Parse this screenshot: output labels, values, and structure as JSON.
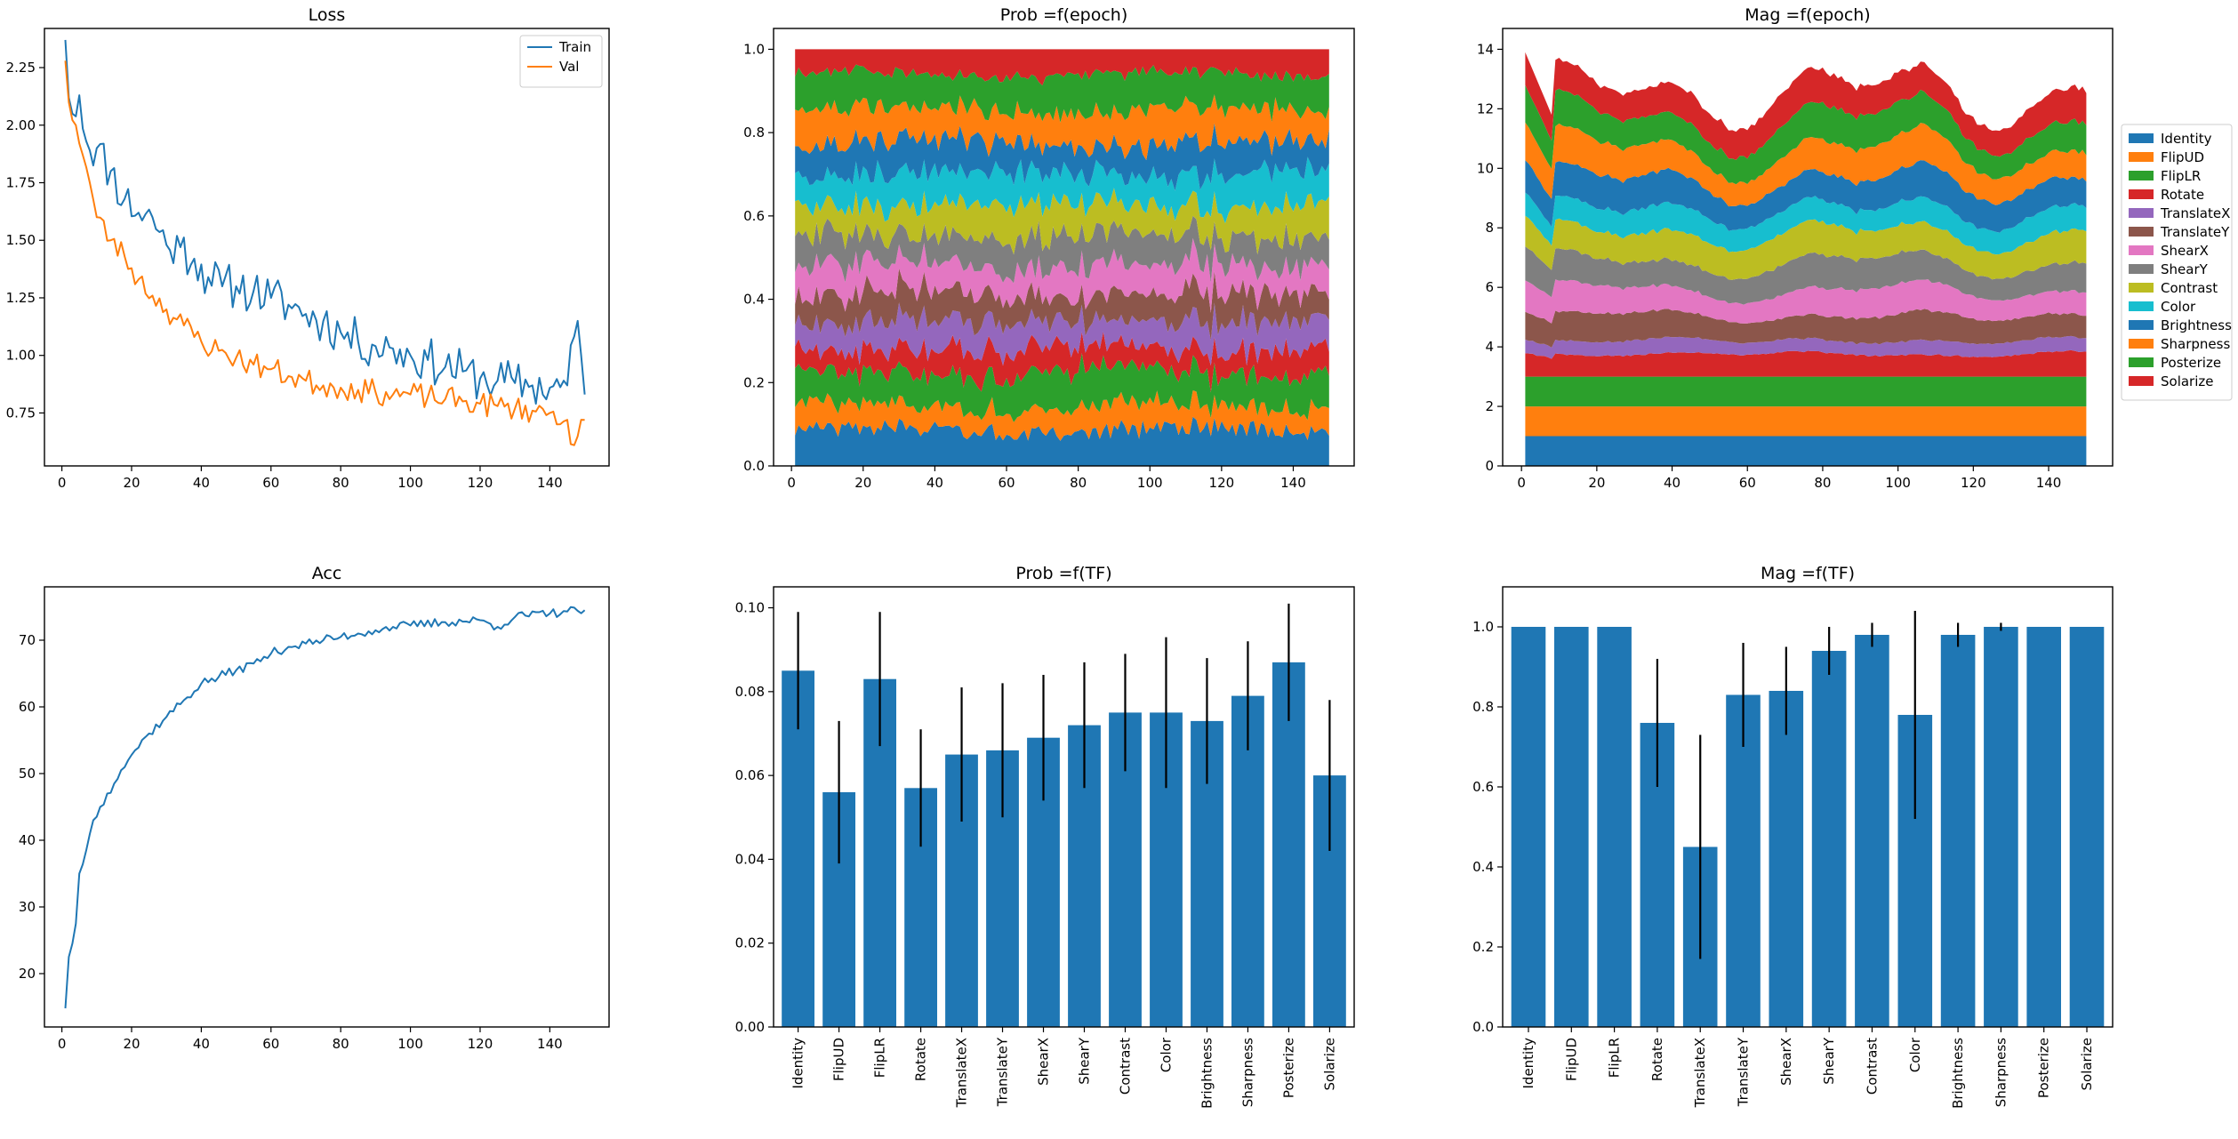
{
  "chart_data": [
    {
      "id": "loss",
      "type": "line",
      "title": "Loss",
      "xlim": [
        -5,
        157
      ],
      "ylim": [
        0.52,
        2.42
      ],
      "xticks": [
        0,
        20,
        40,
        60,
        80,
        100,
        120,
        140
      ],
      "yticks": [
        0.75,
        1.0,
        1.25,
        1.5,
        1.75,
        2.0,
        2.25
      ],
      "ytick_decimals": 2,
      "legend": "top-right",
      "series": [
        {
          "name": "Train",
          "color": "#1f77b4",
          "anchors": [
            [
              1,
              2.37
            ],
            [
              2,
              2.12
            ],
            [
              3,
              2.05
            ],
            [
              5,
              2.13
            ],
            [
              7,
              1.93
            ],
            [
              10,
              1.9
            ],
            [
              14,
              1.8
            ],
            [
              18,
              1.68
            ],
            [
              22,
              1.62
            ],
            [
              26,
              1.6
            ],
            [
              30,
              1.48
            ],
            [
              34,
              1.47
            ],
            [
              38,
              1.42
            ],
            [
              42,
              1.34
            ],
            [
              46,
              1.3
            ],
            [
              50,
              1.3
            ],
            [
              55,
              1.28
            ],
            [
              60,
              1.25
            ],
            [
              65,
              1.22
            ],
            [
              70,
              1.18
            ],
            [
              75,
              1.15
            ],
            [
              80,
              1.1
            ],
            [
              85,
              1.06
            ],
            [
              90,
              1.04
            ],
            [
              95,
              1.03
            ],
            [
              100,
              1.0
            ],
            [
              105,
              0.98
            ],
            [
              110,
              0.95
            ],
            [
              115,
              0.93
            ],
            [
              120,
              0.9
            ],
            [
              125,
              0.89
            ],
            [
              130,
              0.88
            ],
            [
              135,
              0.87
            ],
            [
              140,
              0.86
            ],
            [
              145,
              0.87
            ],
            [
              148,
              1.15
            ],
            [
              150,
              0.83
            ]
          ],
          "noise": 0.1,
          "seed": 11
        },
        {
          "name": "Val",
          "color": "#ff7f0e",
          "anchors": [
            [
              1,
              2.28
            ],
            [
              2,
              2.1
            ],
            [
              4,
              2.0
            ],
            [
              6,
              1.87
            ],
            [
              8,
              1.75
            ],
            [
              10,
              1.6
            ],
            [
              14,
              1.5
            ],
            [
              18,
              1.43
            ],
            [
              22,
              1.33
            ],
            [
              26,
              1.26
            ],
            [
              30,
              1.2
            ],
            [
              35,
              1.13
            ],
            [
              40,
              1.06
            ],
            [
              45,
              1.02
            ],
            [
              50,
              0.99
            ],
            [
              55,
              0.96
            ],
            [
              60,
              0.94
            ],
            [
              65,
              0.91
            ],
            [
              70,
              0.89
            ],
            [
              75,
              0.87
            ],
            [
              80,
              0.86
            ],
            [
              85,
              0.85
            ],
            [
              90,
              0.84
            ],
            [
              95,
              0.83
            ],
            [
              100,
              0.83
            ],
            [
              105,
              0.82
            ],
            [
              110,
              0.81
            ],
            [
              115,
              0.8
            ],
            [
              120,
              0.79
            ],
            [
              125,
              0.78
            ],
            [
              130,
              0.77
            ],
            [
              135,
              0.76
            ],
            [
              140,
              0.75
            ],
            [
              145,
              0.72
            ],
            [
              147,
              0.61
            ],
            [
              150,
              0.72
            ]
          ],
          "noise": 0.055,
          "seed": 23
        }
      ]
    },
    {
      "id": "prob-epoch",
      "type": "area",
      "title": "Prob =f(epoch)",
      "xlim": [
        -5,
        157
      ],
      "ylim": [
        0.0,
        1.05
      ],
      "xticks": [
        0,
        20,
        40,
        60,
        80,
        100,
        120,
        140
      ],
      "yticks": [
        0.0,
        0.2,
        0.4,
        0.6,
        0.8,
        1.0
      ],
      "ytick_decimals": 1,
      "x_range": [
        1,
        150
      ],
      "normalized": true,
      "base_values": [
        0.085,
        0.056,
        0.083,
        0.057,
        0.065,
        0.066,
        0.069,
        0.072,
        0.075,
        0.075,
        0.073,
        0.079,
        0.087,
        0.06
      ],
      "noise": 0.25
    },
    {
      "id": "mag-epoch",
      "type": "area",
      "title": "Mag =f(epoch)",
      "xlim": [
        -5,
        157
      ],
      "ylim": [
        0.0,
        14.7
      ],
      "xticks": [
        0,
        20,
        40,
        60,
        80,
        100,
        120,
        140
      ],
      "yticks": [
        0,
        2,
        4,
        6,
        8,
        10,
        12,
        14
      ],
      "ytick_decimals": 0,
      "x_range": [
        1,
        150
      ],
      "normalized": false,
      "base_values": [
        1.0,
        1.0,
        1.0,
        0.76,
        0.45,
        0.83,
        0.84,
        0.94,
        0.98,
        0.78,
        0.98,
        1.0,
        1.0,
        1.0
      ],
      "fixed_layers": [
        0,
        1,
        2
      ],
      "start_total": 13.9,
      "noise": 0.04,
      "legend": "outside-right",
      "legend_labels": [
        "Identity",
        "FlipUD",
        "FlipLR",
        "Rotate",
        "TranslateX",
        "TranslateY",
        "ShearX",
        "ShearY",
        "Contrast",
        "Color",
        "Brightness",
        "Sharpness",
        "Posterize",
        "Solarize"
      ]
    },
    {
      "id": "acc",
      "type": "line",
      "title": "Acc",
      "xlim": [
        -5,
        157
      ],
      "ylim": [
        12.0,
        78.0
      ],
      "xticks": [
        0,
        20,
        40,
        60,
        80,
        100,
        120,
        140
      ],
      "yticks": [
        20,
        30,
        40,
        50,
        60,
        70
      ],
      "ytick_decimals": 0,
      "series": [
        {
          "name": "",
          "color": "#1f77b4",
          "anchors": [
            [
              1,
              14.8
            ],
            [
              2,
              22.5
            ],
            [
              3,
              24.5
            ],
            [
              4,
              27.5
            ],
            [
              5,
              35
            ],
            [
              7,
              38.5
            ],
            [
              9,
              43
            ],
            [
              11,
              45
            ],
            [
              13,
              47
            ],
            [
              15,
              48.5
            ],
            [
              17,
              50.5
            ],
            [
              19,
              52
            ],
            [
              21,
              53.5
            ],
            [
              25,
              56
            ],
            [
              30,
              58.5
            ],
            [
              35,
              61
            ],
            [
              40,
              63.5
            ],
            [
              45,
              64.5
            ],
            [
              50,
              65.5
            ],
            [
              55,
              66.5
            ],
            [
              60,
              68
            ],
            [
              65,
              69
            ],
            [
              70,
              69.5
            ],
            [
              75,
              70
            ],
            [
              80,
              70.5
            ],
            [
              85,
              71
            ],
            [
              90,
              71.5
            ],
            [
              95,
              72
            ],
            [
              100,
              72.2
            ],
            [
              110,
              72.7
            ],
            [
              120,
              73
            ],
            [
              125,
              72
            ],
            [
              130,
              73.5
            ],
            [
              140,
              74
            ],
            [
              145,
              74.3
            ],
            [
              150,
              74.5
            ]
          ],
          "noise": 0.7,
          "seed": 37
        }
      ]
    },
    {
      "id": "prob-tf",
      "type": "bar",
      "title": "Prob =f(TF)",
      "ylim": [
        0.0,
        0.105
      ],
      "yticks": [
        0.0,
        0.02,
        0.04,
        0.06,
        0.08,
        0.1
      ],
      "ytick_decimals": 2,
      "categories": [
        "Identity",
        "FlipUD",
        "FlipLR",
        "Rotate",
        "TranslateX",
        "TranslateY",
        "ShearX",
        "ShearY",
        "Contrast",
        "Color",
        "Brightness",
        "Sharpness",
        "Posterize",
        "Solarize"
      ],
      "values": [
        0.085,
        0.056,
        0.083,
        0.057,
        0.065,
        0.066,
        0.069,
        0.072,
        0.075,
        0.075,
        0.073,
        0.079,
        0.087,
        0.06
      ],
      "errors": [
        0.014,
        0.017,
        0.016,
        0.014,
        0.016,
        0.016,
        0.015,
        0.015,
        0.014,
        0.018,
        0.015,
        0.013,
        0.014,
        0.018
      ],
      "color": "#1f77b4"
    },
    {
      "id": "mag-tf",
      "type": "bar",
      "title": "Mag =f(TF)",
      "ylim": [
        0.0,
        1.1
      ],
      "yticks": [
        0.0,
        0.2,
        0.4,
        0.6,
        0.8,
        1.0
      ],
      "ytick_decimals": 1,
      "categories": [
        "Identity",
        "FlipUD",
        "FlipLR",
        "Rotate",
        "TranslateX",
        "TranslateY",
        "ShearX",
        "ShearY",
        "Contrast",
        "Color",
        "Brightness",
        "Sharpness",
        "Posterize",
        "Solarize"
      ],
      "values": [
        1.0,
        1.0,
        1.0,
        0.76,
        0.45,
        0.83,
        0.84,
        0.94,
        0.98,
        0.78,
        0.98,
        1.0,
        1.0,
        1.0
      ],
      "errors": [
        0.0,
        0.0,
        0.0,
        0.16,
        0.28,
        0.13,
        0.11,
        0.06,
        0.03,
        0.26,
        0.03,
        0.01,
        0.0,
        0.0
      ],
      "color": "#1f77b4"
    }
  ],
  "palette": [
    "#1f77b4",
    "#ff7f0e",
    "#2ca02c",
    "#d62728",
    "#9467bd",
    "#8c564b",
    "#e377c2",
    "#7f7f7f",
    "#bcbd22",
    "#17becf"
  ]
}
